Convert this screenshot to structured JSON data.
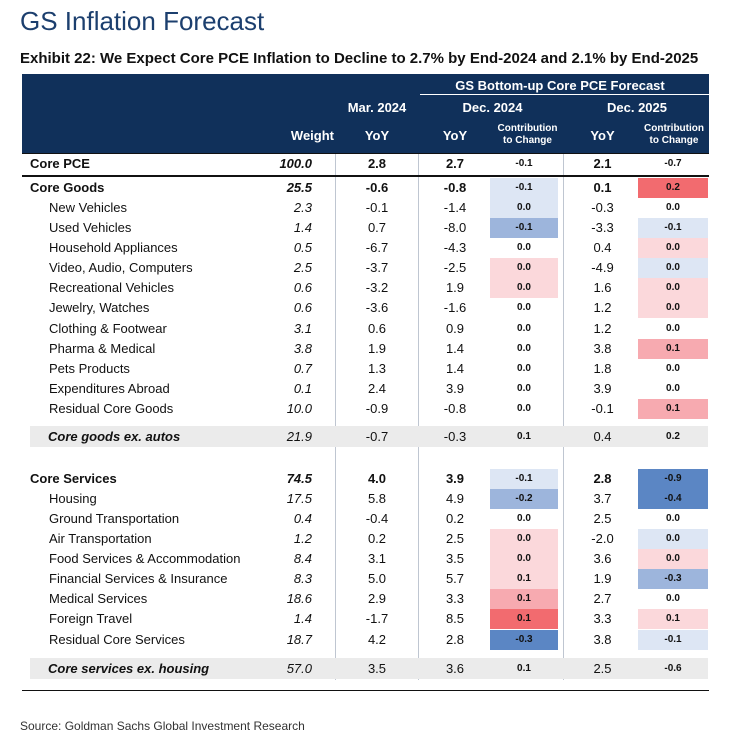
{
  "title": "GS Inflation Forecast",
  "subtitle": "Exhibit 22: We Expect Core PCE Inflation to Decline to 2.7% by End-2024 and 2.1% by End-2025",
  "source": "Source: Goldman Sachs Global Investment Research",
  "header": {
    "group": "GS Bottom-up Core PCE Forecast",
    "mar2024": "Mar. 2024",
    "dec2024": "Dec. 2024",
    "dec2025": "Dec. 2025",
    "weight": "Weight",
    "yoy": "YoY",
    "contribution_line1": "Contribution",
    "contribution_line2": "to Change"
  },
  "colors": {
    "header_bg": "#10305a",
    "title": "#1c3f6e",
    "positive_strong": "#f26b6f",
    "positive_medium": "#f7aab0",
    "positive_light": "#fbd8db",
    "negative_strong": "#5b86c4",
    "negative_medium": "#9db5dc",
    "negative_light": "#dde6f4",
    "neutral": "#ffffff"
  },
  "chart_data": {
    "type": "table",
    "title": "Exhibit 22: We Expect Core PCE Inflation to Decline to 2.7% by End-2024 and 2.1% by End-2025",
    "columns": [
      "Weight",
      "Mar. 2024 YoY",
      "Dec. 2024 YoY",
      "Dec. 2024 Contribution to Change",
      "Dec. 2025 YoY",
      "Dec. 2025 Contribution to Change"
    ],
    "rows": [
      {
        "label": "Core PCE",
        "weight": "100.0",
        "mar24": "2.8",
        "dec24": "2.7",
        "c24": "-0.1",
        "dec25": "2.1",
        "c25": "-0.7",
        "c24_color": "neutral",
        "c25_color": "neutral"
      },
      {
        "label": "Core Goods",
        "weight": "25.5",
        "mar24": "-0.6",
        "dec24": "-0.8",
        "c24": "-0.1",
        "dec25": "0.1",
        "c25": "0.2",
        "c24_color": "negative_light",
        "c25_color": "positive_strong"
      },
      {
        "label": "New Vehicles",
        "weight": "2.3",
        "mar24": "-0.1",
        "dec24": "-1.4",
        "c24": "0.0",
        "dec25": "-0.3",
        "c25": "0.0",
        "c24_color": "negative_light",
        "c25_color": "neutral"
      },
      {
        "label": "Used Vehicles",
        "weight": "1.4",
        "mar24": "0.7",
        "dec24": "-8.0",
        "c24": "-0.1",
        "dec25": "-3.3",
        "c25": "-0.1",
        "c24_color": "negative_medium",
        "c25_color": "negative_light"
      },
      {
        "label": "Household Appliances",
        "weight": "0.5",
        "mar24": "-6.7",
        "dec24": "-4.3",
        "c24": "0.0",
        "dec25": "0.4",
        "c25": "0.0",
        "c24_color": "neutral",
        "c25_color": "positive_light"
      },
      {
        "label": "Video, Audio, Computers",
        "weight": "2.5",
        "mar24": "-3.7",
        "dec24": "-2.5",
        "c24": "0.0",
        "dec25": "-4.9",
        "c25": "0.0",
        "c24_color": "positive_light",
        "c25_color": "negative_light"
      },
      {
        "label": "Recreational Vehicles",
        "weight": "0.6",
        "mar24": "-3.2",
        "dec24": "1.9",
        "c24": "0.0",
        "dec25": "1.6",
        "c25": "0.0",
        "c24_color": "positive_light",
        "c25_color": "positive_light"
      },
      {
        "label": "Jewelry, Watches",
        "weight": "0.6",
        "mar24": "-3.6",
        "dec24": "-1.6",
        "c24": "0.0",
        "dec25": "1.2",
        "c25": "0.0",
        "c24_color": "neutral",
        "c25_color": "positive_light"
      },
      {
        "label": "Clothing & Footwear",
        "weight": "3.1",
        "mar24": "0.6",
        "dec24": "0.9",
        "c24": "0.0",
        "dec25": "1.2",
        "c25": "0.0",
        "c24_color": "neutral",
        "c25_color": "neutral"
      },
      {
        "label": "Pharma & Medical",
        "weight": "3.8",
        "mar24": "1.9",
        "dec24": "1.4",
        "c24": "0.0",
        "dec25": "3.8",
        "c25": "0.1",
        "c24_color": "neutral",
        "c25_color": "positive_medium"
      },
      {
        "label": "Pets Products",
        "weight": "0.7",
        "mar24": "1.3",
        "dec24": "1.4",
        "c24": "0.0",
        "dec25": "1.8",
        "c25": "0.0",
        "c24_color": "neutral",
        "c25_color": "neutral"
      },
      {
        "label": "Expenditures Abroad",
        "weight": "0.1",
        "mar24": "2.4",
        "dec24": "3.9",
        "c24": "0.0",
        "dec25": "3.9",
        "c25": "0.0",
        "c24_color": "neutral",
        "c25_color": "neutral"
      },
      {
        "label": "Residual Core Goods",
        "weight": "10.0",
        "mar24": "-0.9",
        "dec24": "-0.8",
        "c24": "0.0",
        "dec25": "-0.1",
        "c25": "0.1",
        "c24_color": "neutral",
        "c25_color": "positive_medium"
      },
      {
        "label": "Core goods ex. autos",
        "weight": "21.9",
        "mar24": "-0.7",
        "dec24": "-0.3",
        "c24": "0.1",
        "dec25": "0.4",
        "c25": "0.2",
        "c24_color": "gray",
        "c25_color": "gray"
      },
      {
        "label": "Core Services",
        "weight": "74.5",
        "mar24": "4.0",
        "dec24": "3.9",
        "c24": "-0.1",
        "dec25": "2.8",
        "c25": "-0.9",
        "c24_color": "negative_light",
        "c25_color": "negative_strong"
      },
      {
        "label": "Housing",
        "weight": "17.5",
        "mar24": "5.8",
        "dec24": "4.9",
        "c24": "-0.2",
        "dec25": "3.7",
        "c25": "-0.4",
        "c24_color": "negative_medium",
        "c25_color": "negative_strong"
      },
      {
        "label": "Ground Transportation",
        "weight": "0.4",
        "mar24": "-0.4",
        "dec24": "0.2",
        "c24": "0.0",
        "dec25": "2.5",
        "c25": "0.0",
        "c24_color": "neutral",
        "c25_color": "neutral"
      },
      {
        "label": "Air Transportation",
        "weight": "1.2",
        "mar24": "0.2",
        "dec24": "2.5",
        "c24": "0.0",
        "dec25": "-2.0",
        "c25": "0.0",
        "c24_color": "positive_light",
        "c25_color": "negative_light"
      },
      {
        "label": "Food Services & Accommodation",
        "weight": "8.4",
        "mar24": "3.1",
        "dec24": "3.5",
        "c24": "0.0",
        "dec25": "3.6",
        "c25": "0.0",
        "c24_color": "positive_light",
        "c25_color": "positive_light"
      },
      {
        "label": "Financial Services & Insurance",
        "weight": "8.3",
        "mar24": "5.0",
        "dec24": "5.7",
        "c24": "0.1",
        "dec25": "1.9",
        "c25": "-0.3",
        "c24_color": "positive_light",
        "c25_color": "negative_medium"
      },
      {
        "label": "Medical Services",
        "weight": "18.6",
        "mar24": "2.9",
        "dec24": "3.3",
        "c24": "0.1",
        "dec25": "2.7",
        "c25": "0.0",
        "c24_color": "positive_medium",
        "c25_color": "neutral"
      },
      {
        "label": "Foreign Travel",
        "weight": "1.4",
        "mar24": "-1.7",
        "dec24": "8.5",
        "c24": "0.1",
        "dec25": "3.3",
        "c25": "0.1",
        "c24_color": "positive_strong",
        "c25_color": "positive_light"
      },
      {
        "label": "Residual Core Services",
        "weight": "18.7",
        "mar24": "4.2",
        "dec24": "2.8",
        "c24": "-0.3",
        "dec25": "3.8",
        "c25": "-0.1",
        "c24_color": "negative_strong",
        "c25_color": "negative_light"
      },
      {
        "label": "Core services ex. housing",
        "weight": "57.0",
        "mar24": "3.5",
        "dec24": "3.6",
        "c24": "0.1",
        "dec25": "2.5",
        "c25": "-0.6",
        "c24_color": "gray",
        "c25_color": "gray"
      }
    ]
  }
}
